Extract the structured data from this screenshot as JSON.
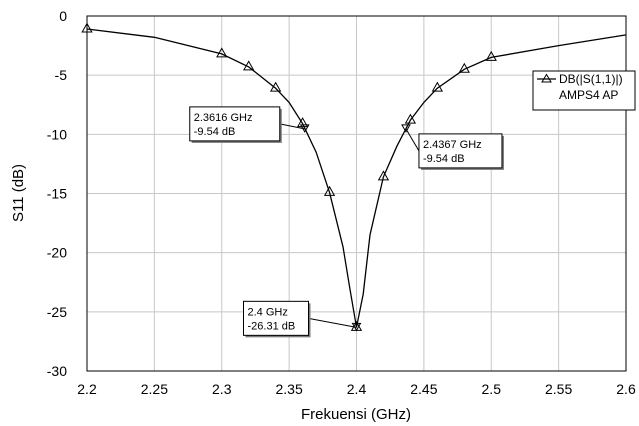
{
  "chart_data": {
    "type": "line",
    "title": "",
    "xlabel": "Frekuensi (GHz)",
    "ylabel": "S11 (dB)",
    "xlim": [
      2.2,
      2.6
    ],
    "ylim": [
      -30,
      0
    ],
    "xticks": [
      "2.2",
      "2.25",
      "2.3",
      "2.35",
      "2.4",
      "2.45",
      "2.5",
      "2.55",
      "2.6"
    ],
    "yticks": [
      "0",
      "-5",
      "-10",
      "-15",
      "-20",
      "-25",
      "-30"
    ],
    "xtick_values": [
      2.2,
      2.25,
      2.3,
      2.35,
      2.4,
      2.45,
      2.5,
      2.55,
      2.6
    ],
    "ytick_values": [
      0,
      -5,
      -10,
      -15,
      -20,
      -25,
      -30
    ],
    "grid": true,
    "legend_position": "top-right",
    "series": [
      {
        "name": "DB(|S(1,1)|)",
        "name_line2": "AMPS4 AP",
        "color": "#000000",
        "x": [
          2.2,
          2.25,
          2.3,
          2.32,
          2.34,
          2.35,
          2.36,
          2.37,
          2.38,
          2.39,
          2.395,
          2.4,
          2.405,
          2.41,
          2.42,
          2.43,
          2.44,
          2.45,
          2.46,
          2.48,
          2.5,
          2.55,
          2.6
        ],
        "values": [
          -1.1,
          -1.8,
          -3.2,
          -4.3,
          -6.1,
          -7.3,
          -9.1,
          -11.5,
          -14.9,
          -19.5,
          -23.0,
          -26.31,
          -23.5,
          -18.5,
          -13.6,
          -11.0,
          -8.8,
          -7.3,
          -6.1,
          -4.5,
          -3.5,
          -2.5,
          -1.6
        ],
        "markers_x": [
          2.2,
          2.3,
          2.32,
          2.34,
          2.36,
          2.38,
          2.4,
          2.42,
          2.44,
          2.46,
          2.48,
          2.5
        ],
        "markers_y": [
          -1.1,
          -3.2,
          -4.3,
          -6.1,
          -9.1,
          -14.9,
          -26.31,
          -13.6,
          -8.8,
          -6.1,
          -4.5,
          -3.5
        ]
      }
    ],
    "annotations": [
      {
        "x": 2.3616,
        "y": -9.54,
        "line1": "2.3616 GHz",
        "line2": "-9.54 dB",
        "side": "left"
      },
      {
        "x": 2.4367,
        "y": -9.54,
        "line1": "2.4367 GHz",
        "line2": "-9.54 dB",
        "side": "right"
      },
      {
        "x": 2.4,
        "y": -26.31,
        "line1": "2.4 GHz",
        "line2": "-26.31 dB",
        "side": "left"
      }
    ]
  }
}
